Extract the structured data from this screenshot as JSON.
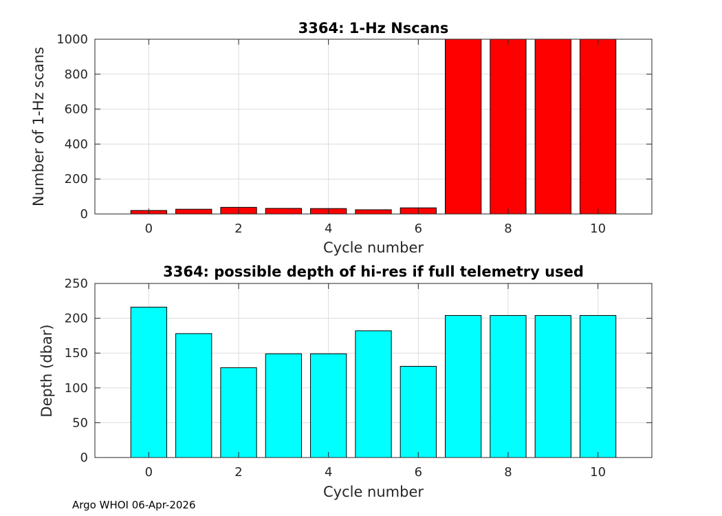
{
  "footer": "Argo WHOI 06-Apr-2026",
  "chart_data": [
    {
      "type": "bar",
      "title": "3364: 1-Hz Nscans",
      "xlabel": "Cycle number",
      "ylabel": "Number of 1-Hz scans",
      "x": [
        0,
        1,
        2,
        3,
        4,
        5,
        6,
        7,
        8,
        9,
        10
      ],
      "values": [
        20,
        27,
        38,
        32,
        31,
        24,
        35,
        1000,
        1000,
        1000,
        1000
      ],
      "xlim": [
        -1.2,
        11.2
      ],
      "ylim": [
        0,
        1000
      ],
      "xticks": [
        0,
        2,
        4,
        6,
        8,
        10
      ],
      "yticks": [
        0,
        200,
        400,
        600,
        800,
        1000
      ],
      "bar_color": "#ff0000",
      "grid": true
    },
    {
      "type": "bar",
      "title": "3364: possible depth of hi-res if full telemetry used",
      "xlabel": "Cycle number",
      "ylabel": "Depth (dbar)",
      "x": [
        0,
        1,
        2,
        3,
        4,
        5,
        6,
        7,
        8,
        9,
        10
      ],
      "values": [
        216,
        178,
        129,
        149,
        149,
        182,
        131,
        204,
        204,
        204,
        204
      ],
      "xlim": [
        -1.2,
        11.2
      ],
      "ylim": [
        0,
        250
      ],
      "xticks": [
        0,
        2,
        4,
        6,
        8,
        10
      ],
      "yticks": [
        0,
        50,
        100,
        150,
        200,
        250
      ],
      "bar_color": "#00ffff",
      "grid": true
    }
  ]
}
